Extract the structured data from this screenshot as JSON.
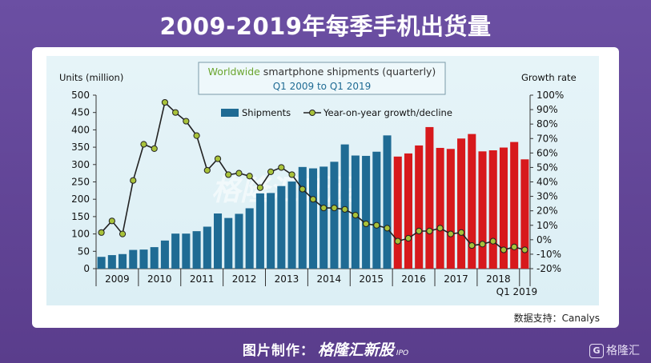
{
  "page": {
    "title": "2009-2019年每季手机出货量",
    "source": "数据支持：Canalys",
    "footer_label": "图片制作：",
    "footer_brand": "格隆汇新股",
    "footer_ipo": "IPO",
    "corner_logo_letter": "G",
    "corner_logo_text": "格隆汇"
  },
  "colors": {
    "bar_blue": "#1f6b94",
    "bar_red": "#d7191c",
    "line": "#222222",
    "marker_fill": "#a8c23a"
  },
  "chart_data": {
    "type": "bar",
    "title_prefix": "Worldwide",
    "title_rest": " smartphone shipments (quarterly)",
    "subtitle": "Q1 2009 to Q1 2019",
    "ylabel_left": "Units (million)",
    "ylabel_right": "Growth rate",
    "ylim": [
      0,
      500
    ],
    "ylim_right": [
      -20,
      100
    ],
    "yticks_left": [
      "0",
      "50",
      "100",
      "150",
      "200",
      "250",
      "300",
      "350",
      "400",
      "450",
      "500"
    ],
    "yticks_right": [
      "-20%",
      "-10%",
      "0%",
      "10%",
      "20%",
      "30%",
      "40%",
      "50%",
      "60%",
      "70%",
      "80%",
      "90%",
      "100%"
    ],
    "year_labels": [
      "2009",
      "2010",
      "2011",
      "2012",
      "2013",
      "2014",
      "2015",
      "2016",
      "2017",
      "2018",
      "Q1 2019"
    ],
    "legend": {
      "bar": "Shipments",
      "line": "Year-on-year growth/decline"
    },
    "watermark": "格隆汇新股",
    "shipments": [
      34,
      39,
      42,
      54,
      55,
      62,
      81,
      101,
      101,
      108,
      121,
      159,
      146,
      158,
      174,
      217,
      218,
      238,
      251,
      293,
      289,
      294,
      308,
      358,
      326,
      325,
      337,
      384,
      323,
      332,
      355,
      408,
      348,
      345,
      375,
      388,
      338,
      341,
      349,
      365,
      315
    ],
    "growth_pct": [
      5,
      13,
      4,
      41,
      66,
      63,
      95,
      88,
      82,
      72,
      48,
      56,
      45,
      46,
      44,
      36,
      47,
      50,
      45,
      35,
      28,
      22,
      22,
      21,
      17,
      11,
      10,
      8,
      -1,
      1,
      6,
      6,
      8,
      4,
      5,
      -4,
      -3,
      -1,
      -7,
      -5,
      -7
    ],
    "red_start_index": 28
  }
}
